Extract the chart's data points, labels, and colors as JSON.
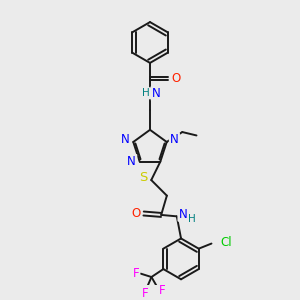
{
  "bg_color": "#ebebeb",
  "bond_color": "#1a1a1a",
  "N_color": "#0000ff",
  "O_color": "#ff2200",
  "S_color": "#cccc00",
  "Cl_color": "#00cc00",
  "F_color": "#ff00ff",
  "NH_color": "#008080",
  "figsize": [
    3.0,
    3.0
  ],
  "dpi": 100,
  "xlim": [
    0,
    10
  ],
  "ylim": [
    0,
    10
  ]
}
